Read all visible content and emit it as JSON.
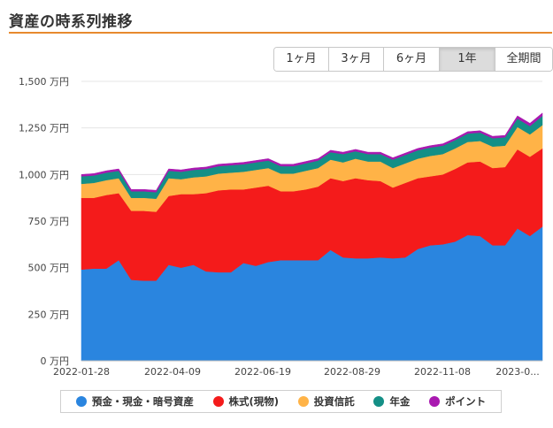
{
  "header": {
    "title": "資産の時系列推移"
  },
  "range_buttons": [
    {
      "label": "1ヶ月",
      "active": false
    },
    {
      "label": "3ヶ月",
      "active": false
    },
    {
      "label": "6ヶ月",
      "active": false
    },
    {
      "label": "1年",
      "active": true
    },
    {
      "label": "全期間",
      "active": false
    }
  ],
  "chart_data": {
    "type": "area",
    "stacked": true,
    "title": "",
    "xlabel": "",
    "ylabel": "",
    "ylim": [
      0,
      1500
    ],
    "y_ticks": [
      0,
      250,
      500,
      750,
      1000,
      1250,
      1500
    ],
    "y_tick_labels": [
      "0 万円",
      "250 万円",
      "500 万円",
      "750 万円",
      "1,000 万円",
      "1,250 万円",
      "1,500 万円"
    ],
    "x_tick_labels": [
      "2022-01-28",
      "2022-04-09",
      "2022-06-19",
      "2022-08-29",
      "2022-11-08",
      "2023-0..."
    ],
    "grid": true,
    "legend_position": "bottom",
    "x": [
      "2022-01-28",
      "2022-02-07",
      "2022-02-14",
      "2022-02-21",
      "2022-03-01",
      "2022-03-11",
      "2022-03-21",
      "2022-03-31",
      "2022-04-09",
      "2022-04-19",
      "2022-04-29",
      "2022-05-09",
      "2022-05-19",
      "2022-05-29",
      "2022-06-08",
      "2022-06-19",
      "2022-06-29",
      "2022-07-09",
      "2022-07-19",
      "2022-07-29",
      "2022-08-08",
      "2022-08-18",
      "2022-08-29",
      "2022-09-08",
      "2022-09-18",
      "2022-09-28",
      "2022-10-08",
      "2022-10-18",
      "2022-10-28",
      "2022-11-08",
      "2022-11-18",
      "2022-11-28",
      "2022-12-08",
      "2022-12-18",
      "2022-12-28",
      "2023-01-07",
      "2023-01-17",
      "2023-01-24"
    ],
    "series": [
      {
        "name": "預金・現金・暗号資産",
        "color": "#2a85df",
        "values": [
          490,
          495,
          495,
          540,
          435,
          430,
          430,
          515,
          500,
          515,
          480,
          475,
          475,
          525,
          510,
          530,
          540,
          540,
          540,
          540,
          595,
          555,
          550,
          550,
          555,
          550,
          555,
          600,
          620,
          625,
          640,
          675,
          670,
          620,
          620,
          710,
          670,
          720
        ]
      },
      {
        "name": "株式(現物)",
        "color": "#f41b1b",
        "values": [
          385,
          380,
          395,
          360,
          370,
          375,
          370,
          370,
          395,
          380,
          420,
          440,
          445,
          395,
          420,
          410,
          370,
          370,
          380,
          395,
          385,
          410,
          430,
          420,
          410,
          380,
          400,
          380,
          370,
          375,
          390,
          390,
          400,
          415,
          420,
          425,
          425,
          420
        ]
      },
      {
        "name": "投資信託",
        "color": "#ffb347",
        "values": [
          75,
          80,
          80,
          80,
          70,
          70,
          70,
          95,
          80,
          90,
          90,
          90,
          90,
          95,
          95,
          95,
          95,
          95,
          100,
          100,
          100,
          100,
          105,
          100,
          105,
          105,
          105,
          105,
          110,
          110,
          110,
          110,
          110,
          115,
          115,
          120,
          120,
          125
        ]
      },
      {
        "name": "年金",
        "color": "#148f86",
        "values": [
          40,
          40,
          40,
          40,
          35,
          35,
          35,
          40,
          40,
          40,
          40,
          40,
          40,
          40,
          40,
          40,
          40,
          40,
          40,
          40,
          40,
          45,
          40,
          40,
          40,
          45,
          45,
          45,
          45,
          45,
          45,
          45,
          45,
          45,
          45,
          45,
          45,
          50
        ]
      },
      {
        "name": "ポイント",
        "color": "#a919b0",
        "values": [
          10,
          10,
          10,
          10,
          10,
          10,
          10,
          10,
          10,
          10,
          10,
          10,
          10,
          10,
          10,
          10,
          10,
          10,
          10,
          10,
          10,
          10,
          10,
          10,
          10,
          10,
          10,
          10,
          10,
          10,
          10,
          10,
          10,
          10,
          10,
          15,
          15,
          15
        ]
      }
    ]
  }
}
